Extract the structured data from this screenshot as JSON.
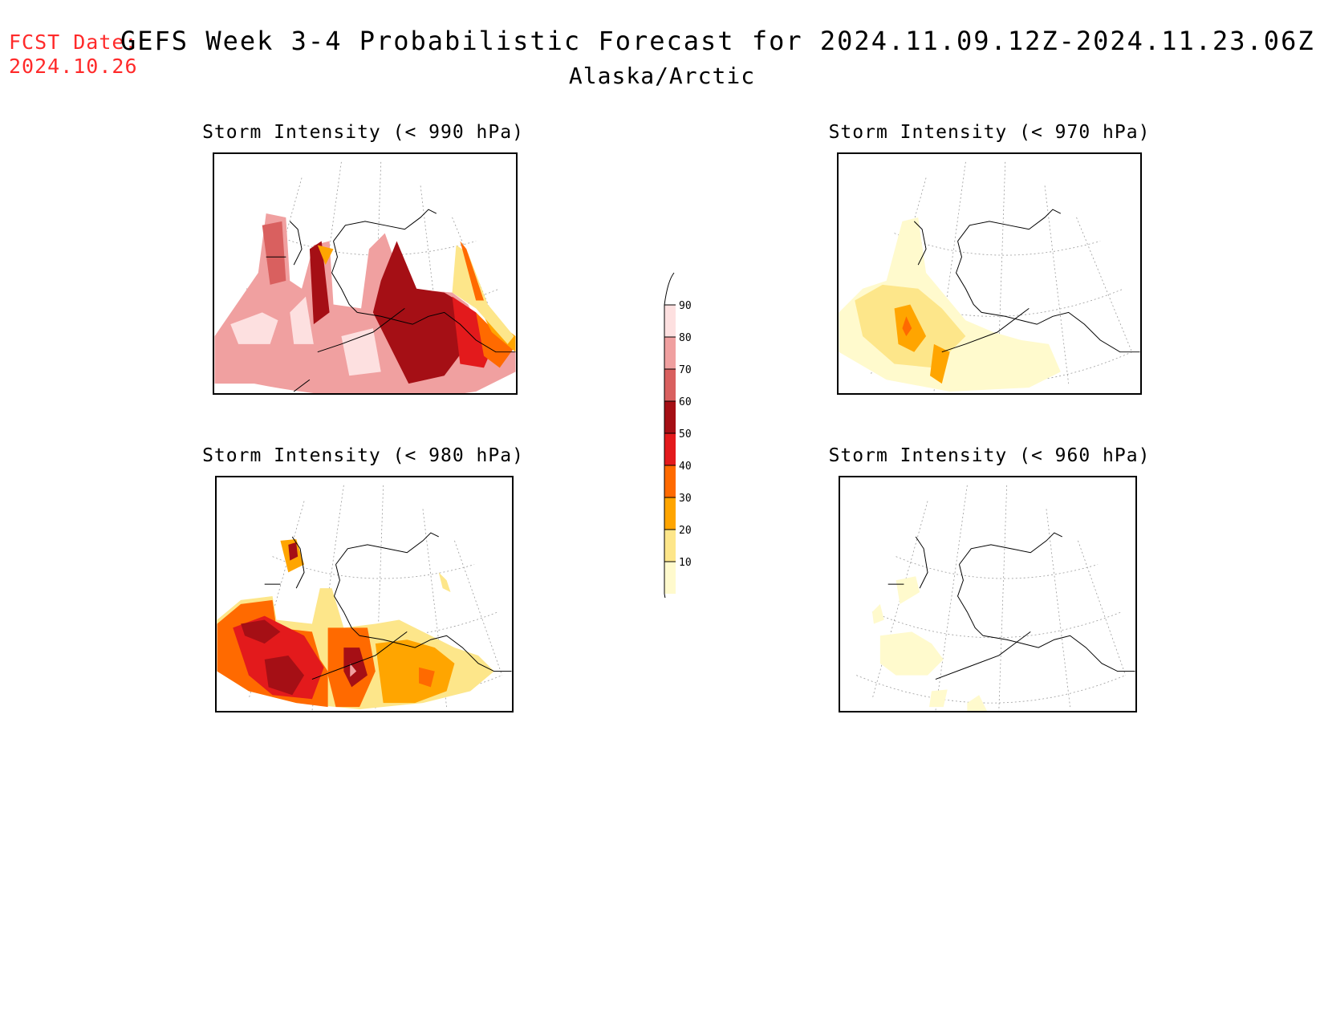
{
  "header": {
    "fcst_label": "FCST Date:",
    "fcst_date": "2024.10.26",
    "title": "GEFS Week 3-4 Probabilistic Forecast for 2024.11.09.12Z-2024.11.23.06Z",
    "subtitle": "Alaska/Arctic"
  },
  "panels": [
    {
      "title": "Storm Intensity (< 990 hPa)"
    },
    {
      "title": "Storm Intensity (< 970 hPa)"
    },
    {
      "title": "Storm Intensity (< 980 hPa)"
    },
    {
      "title": "Storm Intensity (< 960 hPa)"
    }
  ],
  "colorbar": {
    "ticks": [
      "10",
      "20",
      "30",
      "40",
      "50",
      "60",
      "70",
      "80",
      "90"
    ],
    "colors": [
      "#fffacd",
      "#fde68a",
      "#ffa500",
      "#ff6a00",
      "#e31a1c",
      "#a50f15",
      "#d9605f",
      "#f0a0a0",
      "#fde0e0"
    ]
  }
}
